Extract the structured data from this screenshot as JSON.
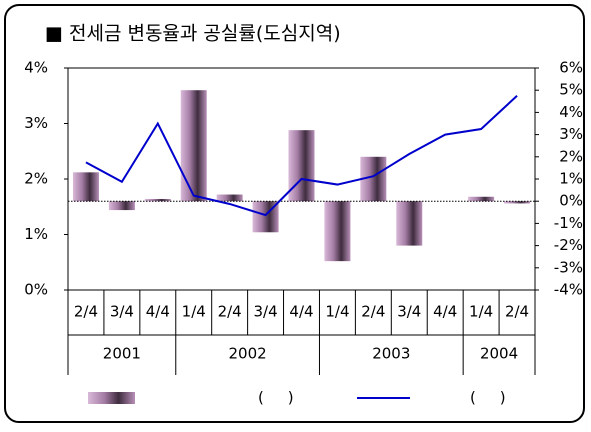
{
  "chart_data": {
    "type": "bar_line",
    "title": "■ 전세금 변동율과 공실률(도심지역)",
    "categories": [
      "2/4",
      "3/4",
      "4/4",
      "1/4",
      "2/4",
      "3/4",
      "4/4",
      "1/4",
      "2/4",
      "3/4",
      "4/4",
      "1/4",
      "2/4"
    ],
    "groups": [
      {
        "label": "2001",
        "count": 3
      },
      {
        "label": "2002",
        "count": 4
      },
      {
        "label": "2003",
        "count": 4
      },
      {
        "label": "2004",
        "count": 2
      }
    ],
    "series": [
      {
        "name": "(     )",
        "type": "bar",
        "axis": "y2",
        "color": "#9a6e9a",
        "values": [
          1.3,
          -0.4,
          0.1,
          5.0,
          0.3,
          -1.4,
          3.2,
          -2.7,
          2.0,
          -2.0,
          0.0,
          0.2,
          -0.1
        ]
      },
      {
        "name": "(     )",
        "type": "line",
        "axis": "y",
        "color": "#0000cc",
        "values": [
          2.3,
          1.95,
          3.0,
          1.7,
          1.55,
          1.35,
          2.0,
          1.9,
          2.05,
          2.45,
          2.8,
          2.9,
          3.5
        ]
      }
    ],
    "ylim": [
      0,
      4
    ],
    "yticks": [
      {
        "value": 0,
        "label": "0%"
      },
      {
        "value": 1,
        "label": "1%"
      },
      {
        "value": 2,
        "label": "2%"
      },
      {
        "value": 3,
        "label": "3%"
      },
      {
        "value": 4,
        "label": "4%"
      }
    ],
    "y2lim": [
      -4,
      6
    ],
    "y2ticks": [
      {
        "value": -4,
        "label": "-4%"
      },
      {
        "value": -3,
        "label": "-3%"
      },
      {
        "value": -2,
        "label": "-2%"
      },
      {
        "value": -1,
        "label": "-1%"
      },
      {
        "value": 0,
        "label": "0%"
      },
      {
        "value": 1,
        "label": "1%"
      },
      {
        "value": 2,
        "label": "2%"
      },
      {
        "value": 3,
        "label": "3%"
      },
      {
        "value": 4,
        "label": "4%"
      },
      {
        "value": 5,
        "label": "5%"
      },
      {
        "value": 6,
        "label": "6%"
      }
    ]
  }
}
